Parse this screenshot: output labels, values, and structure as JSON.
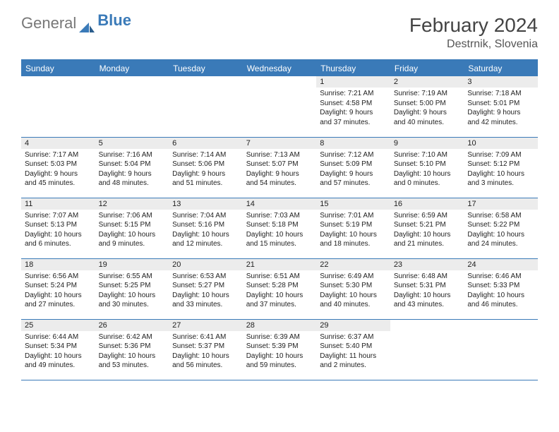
{
  "logo": {
    "part1": "General",
    "part2": "Blue"
  },
  "title": {
    "month": "February 2024",
    "location": "Destrnik, Slovenia"
  },
  "colors": {
    "accent": "#3a7ab8",
    "header_bg": "#3a7ab8",
    "daynum_bg": "#ececec",
    "text": "#222222"
  },
  "weekdays": [
    "Sunday",
    "Monday",
    "Tuesday",
    "Wednesday",
    "Thursday",
    "Friday",
    "Saturday"
  ],
  "weeks": [
    [
      null,
      null,
      null,
      null,
      {
        "n": "1",
        "sr": "Sunrise: 7:21 AM",
        "ss": "Sunset: 4:58 PM",
        "dl1": "Daylight: 9 hours",
        "dl2": "and 37 minutes."
      },
      {
        "n": "2",
        "sr": "Sunrise: 7:19 AM",
        "ss": "Sunset: 5:00 PM",
        "dl1": "Daylight: 9 hours",
        "dl2": "and 40 minutes."
      },
      {
        "n": "3",
        "sr": "Sunrise: 7:18 AM",
        "ss": "Sunset: 5:01 PM",
        "dl1": "Daylight: 9 hours",
        "dl2": "and 42 minutes."
      }
    ],
    [
      {
        "n": "4",
        "sr": "Sunrise: 7:17 AM",
        "ss": "Sunset: 5:03 PM",
        "dl1": "Daylight: 9 hours",
        "dl2": "and 45 minutes."
      },
      {
        "n": "5",
        "sr": "Sunrise: 7:16 AM",
        "ss": "Sunset: 5:04 PM",
        "dl1": "Daylight: 9 hours",
        "dl2": "and 48 minutes."
      },
      {
        "n": "6",
        "sr": "Sunrise: 7:14 AM",
        "ss": "Sunset: 5:06 PM",
        "dl1": "Daylight: 9 hours",
        "dl2": "and 51 minutes."
      },
      {
        "n": "7",
        "sr": "Sunrise: 7:13 AM",
        "ss": "Sunset: 5:07 PM",
        "dl1": "Daylight: 9 hours",
        "dl2": "and 54 minutes."
      },
      {
        "n": "8",
        "sr": "Sunrise: 7:12 AM",
        "ss": "Sunset: 5:09 PM",
        "dl1": "Daylight: 9 hours",
        "dl2": "and 57 minutes."
      },
      {
        "n": "9",
        "sr": "Sunrise: 7:10 AM",
        "ss": "Sunset: 5:10 PM",
        "dl1": "Daylight: 10 hours",
        "dl2": "and 0 minutes."
      },
      {
        "n": "10",
        "sr": "Sunrise: 7:09 AM",
        "ss": "Sunset: 5:12 PM",
        "dl1": "Daylight: 10 hours",
        "dl2": "and 3 minutes."
      }
    ],
    [
      {
        "n": "11",
        "sr": "Sunrise: 7:07 AM",
        "ss": "Sunset: 5:13 PM",
        "dl1": "Daylight: 10 hours",
        "dl2": "and 6 minutes."
      },
      {
        "n": "12",
        "sr": "Sunrise: 7:06 AM",
        "ss": "Sunset: 5:15 PM",
        "dl1": "Daylight: 10 hours",
        "dl2": "and 9 minutes."
      },
      {
        "n": "13",
        "sr": "Sunrise: 7:04 AM",
        "ss": "Sunset: 5:16 PM",
        "dl1": "Daylight: 10 hours",
        "dl2": "and 12 minutes."
      },
      {
        "n": "14",
        "sr": "Sunrise: 7:03 AM",
        "ss": "Sunset: 5:18 PM",
        "dl1": "Daylight: 10 hours",
        "dl2": "and 15 minutes."
      },
      {
        "n": "15",
        "sr": "Sunrise: 7:01 AM",
        "ss": "Sunset: 5:19 PM",
        "dl1": "Daylight: 10 hours",
        "dl2": "and 18 minutes."
      },
      {
        "n": "16",
        "sr": "Sunrise: 6:59 AM",
        "ss": "Sunset: 5:21 PM",
        "dl1": "Daylight: 10 hours",
        "dl2": "and 21 minutes."
      },
      {
        "n": "17",
        "sr": "Sunrise: 6:58 AM",
        "ss": "Sunset: 5:22 PM",
        "dl1": "Daylight: 10 hours",
        "dl2": "and 24 minutes."
      }
    ],
    [
      {
        "n": "18",
        "sr": "Sunrise: 6:56 AM",
        "ss": "Sunset: 5:24 PM",
        "dl1": "Daylight: 10 hours",
        "dl2": "and 27 minutes."
      },
      {
        "n": "19",
        "sr": "Sunrise: 6:55 AM",
        "ss": "Sunset: 5:25 PM",
        "dl1": "Daylight: 10 hours",
        "dl2": "and 30 minutes."
      },
      {
        "n": "20",
        "sr": "Sunrise: 6:53 AM",
        "ss": "Sunset: 5:27 PM",
        "dl1": "Daylight: 10 hours",
        "dl2": "and 33 minutes."
      },
      {
        "n": "21",
        "sr": "Sunrise: 6:51 AM",
        "ss": "Sunset: 5:28 PM",
        "dl1": "Daylight: 10 hours",
        "dl2": "and 37 minutes."
      },
      {
        "n": "22",
        "sr": "Sunrise: 6:49 AM",
        "ss": "Sunset: 5:30 PM",
        "dl1": "Daylight: 10 hours",
        "dl2": "and 40 minutes."
      },
      {
        "n": "23",
        "sr": "Sunrise: 6:48 AM",
        "ss": "Sunset: 5:31 PM",
        "dl1": "Daylight: 10 hours",
        "dl2": "and 43 minutes."
      },
      {
        "n": "24",
        "sr": "Sunrise: 6:46 AM",
        "ss": "Sunset: 5:33 PM",
        "dl1": "Daylight: 10 hours",
        "dl2": "and 46 minutes."
      }
    ],
    [
      {
        "n": "25",
        "sr": "Sunrise: 6:44 AM",
        "ss": "Sunset: 5:34 PM",
        "dl1": "Daylight: 10 hours",
        "dl2": "and 49 minutes."
      },
      {
        "n": "26",
        "sr": "Sunrise: 6:42 AM",
        "ss": "Sunset: 5:36 PM",
        "dl1": "Daylight: 10 hours",
        "dl2": "and 53 minutes."
      },
      {
        "n": "27",
        "sr": "Sunrise: 6:41 AM",
        "ss": "Sunset: 5:37 PM",
        "dl1": "Daylight: 10 hours",
        "dl2": "and 56 minutes."
      },
      {
        "n": "28",
        "sr": "Sunrise: 6:39 AM",
        "ss": "Sunset: 5:39 PM",
        "dl1": "Daylight: 10 hours",
        "dl2": "and 59 minutes."
      },
      {
        "n": "29",
        "sr": "Sunrise: 6:37 AM",
        "ss": "Sunset: 5:40 PM",
        "dl1": "Daylight: 11 hours",
        "dl2": "and 2 minutes."
      },
      null,
      null
    ]
  ]
}
